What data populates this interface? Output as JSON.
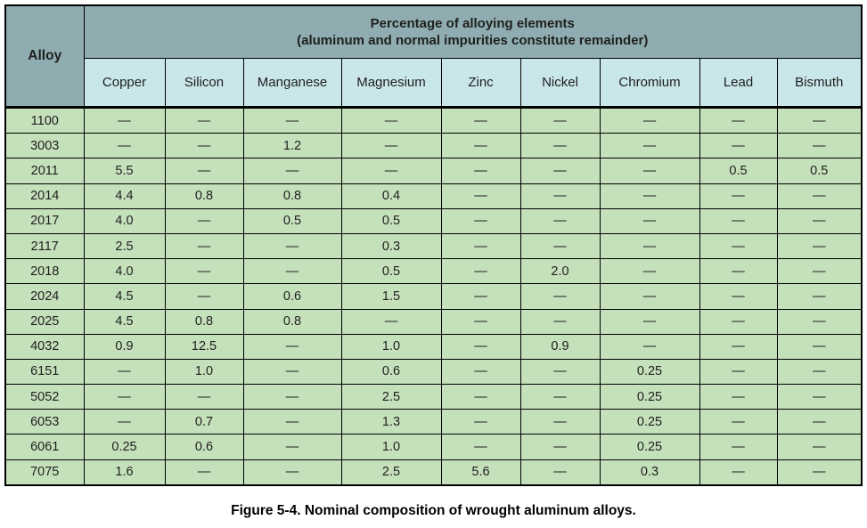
{
  "table": {
    "alloy_header": "Alloy",
    "group_header_line1": "Percentage of alloying elements",
    "group_header_line2": "(aluminum and normal impurities constitute remainder)",
    "columns": [
      "Copper",
      "Silicon",
      "Manganese",
      "Magnesium",
      "Zinc",
      "Nickel",
      "Chromium",
      "Lead",
      "Bismuth"
    ],
    "rows": [
      {
        "alloy": "1100",
        "values": [
          "—",
          "—",
          "—",
          "—",
          "—",
          "—",
          "—",
          "—",
          "—"
        ]
      },
      {
        "alloy": "3003",
        "values": [
          "—",
          "—",
          "1.2",
          "—",
          "—",
          "—",
          "—",
          "—",
          "—"
        ]
      },
      {
        "alloy": "2011",
        "values": [
          "5.5",
          "—",
          "—",
          "—",
          "—",
          "—",
          "—",
          "0.5",
          "0.5"
        ]
      },
      {
        "alloy": "2014",
        "values": [
          "4.4",
          "0.8",
          "0.8",
          "0.4",
          "—",
          "—",
          "—",
          "—",
          "—"
        ]
      },
      {
        "alloy": "2017",
        "values": [
          "4.0",
          "—",
          "0.5",
          "0.5",
          "—",
          "—",
          "—",
          "—",
          "—"
        ]
      },
      {
        "alloy": "2117",
        "values": [
          "2.5",
          "—",
          "—",
          "0.3",
          "—",
          "—",
          "—",
          "—",
          "—"
        ]
      },
      {
        "alloy": "2018",
        "values": [
          "4.0",
          "—",
          "—",
          "0.5",
          "—",
          "2.0",
          "—",
          "—",
          "—"
        ]
      },
      {
        "alloy": "2024",
        "values": [
          "4.5",
          "—",
          "0.6",
          "1.5",
          "—",
          "—",
          "—",
          "—",
          "—"
        ]
      },
      {
        "alloy": "2025",
        "values": [
          "4.5",
          "0.8",
          "0.8",
          "—",
          "—",
          "—",
          "—",
          "—",
          "—"
        ]
      },
      {
        "alloy": "4032",
        "values": [
          "0.9",
          "12.5",
          "—",
          "1.0",
          "—",
          "0.9",
          "—",
          "—",
          "—"
        ]
      },
      {
        "alloy": "6151",
        "values": [
          "—",
          "1.0",
          "—",
          "0.6",
          "—",
          "—",
          "0.25",
          "—",
          "—"
        ]
      },
      {
        "alloy": "5052",
        "values": [
          "—",
          "—",
          "—",
          "2.5",
          "—",
          "—",
          "0.25",
          "—",
          "—"
        ]
      },
      {
        "alloy": "6053",
        "values": [
          "—",
          "0.7",
          "—",
          "1.3",
          "—",
          "—",
          "0.25",
          "—",
          "—"
        ]
      },
      {
        "alloy": "6061",
        "values": [
          "0.25",
          "0.6",
          "—",
          "1.0",
          "—",
          "—",
          "0.25",
          "—",
          "—"
        ]
      },
      {
        "alloy": "7075",
        "values": [
          "1.6",
          "—",
          "—",
          "2.5",
          "5.6",
          "—",
          "0.3",
          "—",
          "—"
        ]
      }
    ]
  },
  "caption": "Figure 5-4. Nominal composition of wrought aluminum alloys.",
  "colors": {
    "header_teal": "#8fadb0",
    "subheader_blue": "#c9e6ea",
    "row_green": "#c5e1bb",
    "border": "#000000",
    "text": "#1f1f1f"
  }
}
